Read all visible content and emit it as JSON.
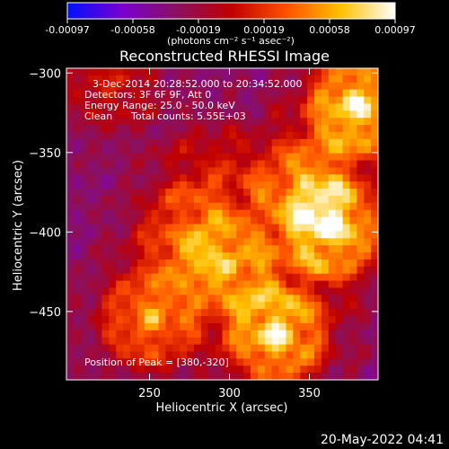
{
  "chart_data": {
    "type": "heatmap",
    "title": "Reconstructed RHESSI Image",
    "xlabel": "Heliocentric X (arcsec)",
    "ylabel": "Heliocentric Y (arcsec)",
    "xlim": [
      198,
      393
    ],
    "ylim": [
      -493,
      -297
    ],
    "x_ticks": [
      250,
      300,
      350
    ],
    "y_ticks": [
      -300,
      -350,
      -400,
      -450
    ],
    "colorbar": {
      "range": [
        -0.00097,
        0.00097
      ],
      "ticks": [
        "-0.00097",
        "-0.00058",
        "-0.00019",
        "0.00019",
        "0.00058",
        "0.00097"
      ],
      "unit_label": "(photons cm⁻² s⁻¹ asec⁻²)",
      "colors": [
        "#0010ff",
        "#7a00d0",
        "#8a1060",
        "#c00000",
        "#ff5000",
        "#ffc000",
        "#ffffff"
      ]
    },
    "annotations": {
      "time_range": "3-Dec-2014 20:28:52.000 to 20:34:52.000",
      "detectors": "Detectors: 3F 6F 9F, Att 0",
      "energy": "Energy Range: 25.0 - 50.0 keV",
      "clean_label": "Clean",
      "counts": "Total counts: 5.55E+03",
      "peak": "Position of Peak = [380,-320]"
    },
    "sources": [
      {
        "x": 380,
        "y": -320,
        "intensity": 1.0
      },
      {
        "x": 365,
        "y": -400,
        "intensity": 0.9
      },
      {
        "x": 330,
        "y": -465,
        "intensity": 0.95
      },
      {
        "x": 250,
        "y": -455,
        "intensity": 0.7
      },
      {
        "x": 300,
        "y": -420,
        "intensity": 0.65
      },
      {
        "x": 345,
        "y": -370,
        "intensity": 0.6
      },
      {
        "x": 270,
        "y": -400,
        "intensity": 0.45
      },
      {
        "x": 225,
        "y": -305,
        "intensity": 0.35
      },
      {
        "x": 290,
        "y": -360,
        "intensity": 0.3
      }
    ]
  },
  "footer": {
    "date": "20-May-2022 04:41"
  }
}
